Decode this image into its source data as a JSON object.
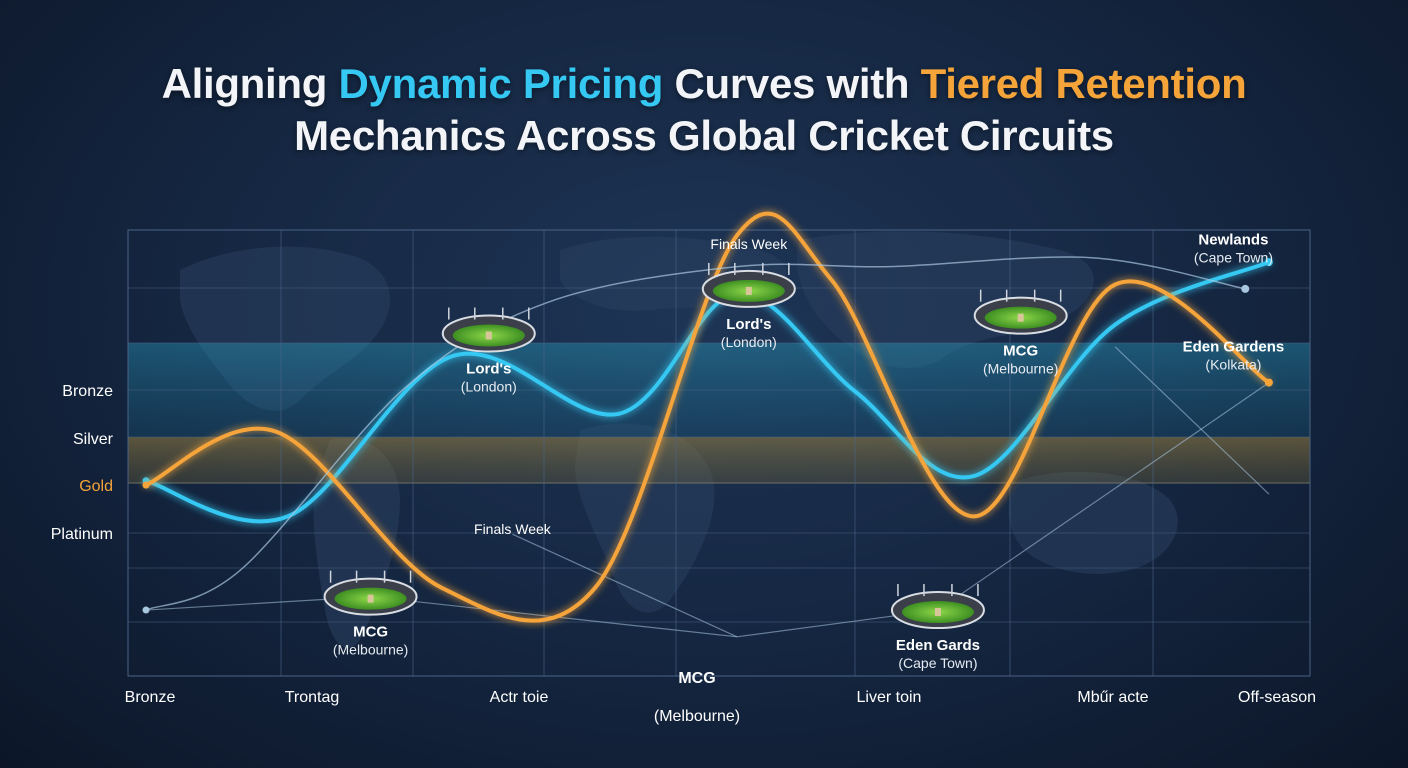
{
  "title": {
    "line1_a": "Aligning ",
    "line1_b": "Dynamic Pricing",
    "line1_c": " Curves with ",
    "line1_d": "Tiered Retention",
    "line2": "Mechanics Across Global Cricket Circuits"
  },
  "colors": {
    "pricing_curve": "#35c8f2",
    "retention_curve": "#f5a43a",
    "bronze_band": "#2aa6c9",
    "gold_band": "#b89a3c",
    "grid": "#4a6386",
    "background": "#14253f"
  },
  "chart_data": {
    "type": "line",
    "title": "Aligning Dynamic Pricing Curves with Tiered Retention Mechanics Across Global Cricket Circuits",
    "x_ticks": [
      "Bronze",
      "Trontag",
      "Actr toie",
      "MCG\n(Melbourne)",
      "Liver toin",
      "Mbűr acte",
      "Off-season"
    ],
    "y_tiers": [
      {
        "label": "Bronze",
        "color": "#ffffff"
      },
      {
        "label": "Silver",
        "color": "#ffffff"
      },
      {
        "label": "Gold",
        "color": "#f5a43a"
      },
      {
        "label": "Platinum",
        "color": "#ffffff"
      }
    ],
    "x_range": [
      0,
      100
    ],
    "y_range": [
      0,
      100
    ],
    "grid": true,
    "series": [
      {
        "color": "#35c8f2",
        "points": [
          [
            0,
            55
          ],
          [
            12,
            47
          ],
          [
            26,
            83
          ],
          [
            40,
            70
          ],
          [
            50,
            97
          ],
          [
            60,
            75
          ],
          [
            70,
            56
          ],
          [
            82,
            90
          ],
          [
            95,
            104
          ]
        ]
      },
      {
        "color": "#f5a43a",
        "points": [
          [
            0,
            54
          ],
          [
            11,
            66
          ],
          [
            25,
            31
          ],
          [
            38,
            31
          ],
          [
            50,
            110
          ],
          [
            58,
            100
          ],
          [
            70,
            47
          ],
          [
            82,
            99
          ],
          [
            95,
            77
          ]
        ]
      },
      {
        "color": "#a9c6e0",
        "points": [
          [
            0,
            26
          ],
          [
            8,
            35
          ],
          [
            22,
            76
          ],
          [
            34,
            95
          ],
          [
            50,
            103
          ],
          [
            63,
            103
          ],
          [
            80,
            105
          ],
          [
            93,
            98
          ]
        ]
      }
    ],
    "annotations": [
      {
        "id": "lords-left",
        "x": 29,
        "y": 88,
        "name": "Lord's",
        "sub": "(London)"
      },
      {
        "id": "finals-top",
        "x": 51,
        "y": 107,
        "name": "Finals Week",
        "sub": ""
      },
      {
        "id": "lords-center",
        "x": 51,
        "y": 98,
        "name": "Lord's",
        "sub": "(London)"
      },
      {
        "id": "mcg-right",
        "x": 74,
        "y": 92,
        "name": "MCG",
        "sub": "(Melbourne)"
      },
      {
        "id": "newlands",
        "x": 92,
        "y": 108,
        "name": "Newlands",
        "sub": "(Cape Town)"
      },
      {
        "id": "eden-right",
        "x": 92,
        "y": 84,
        "name": "Eden Gardens",
        "sub": "(Kolkata)"
      },
      {
        "id": "finals-mid",
        "x": 31,
        "y": 43,
        "name": "Finals Week",
        "sub": ""
      },
      {
        "id": "mcg-left",
        "x": 19,
        "y": 29,
        "name": "MCG",
        "sub": "(Melbourne)"
      },
      {
        "id": "eden-bottom",
        "x": 67,
        "y": 26,
        "name": "Eden Gards",
        "sub": "(Cape Town)"
      }
    ]
  }
}
